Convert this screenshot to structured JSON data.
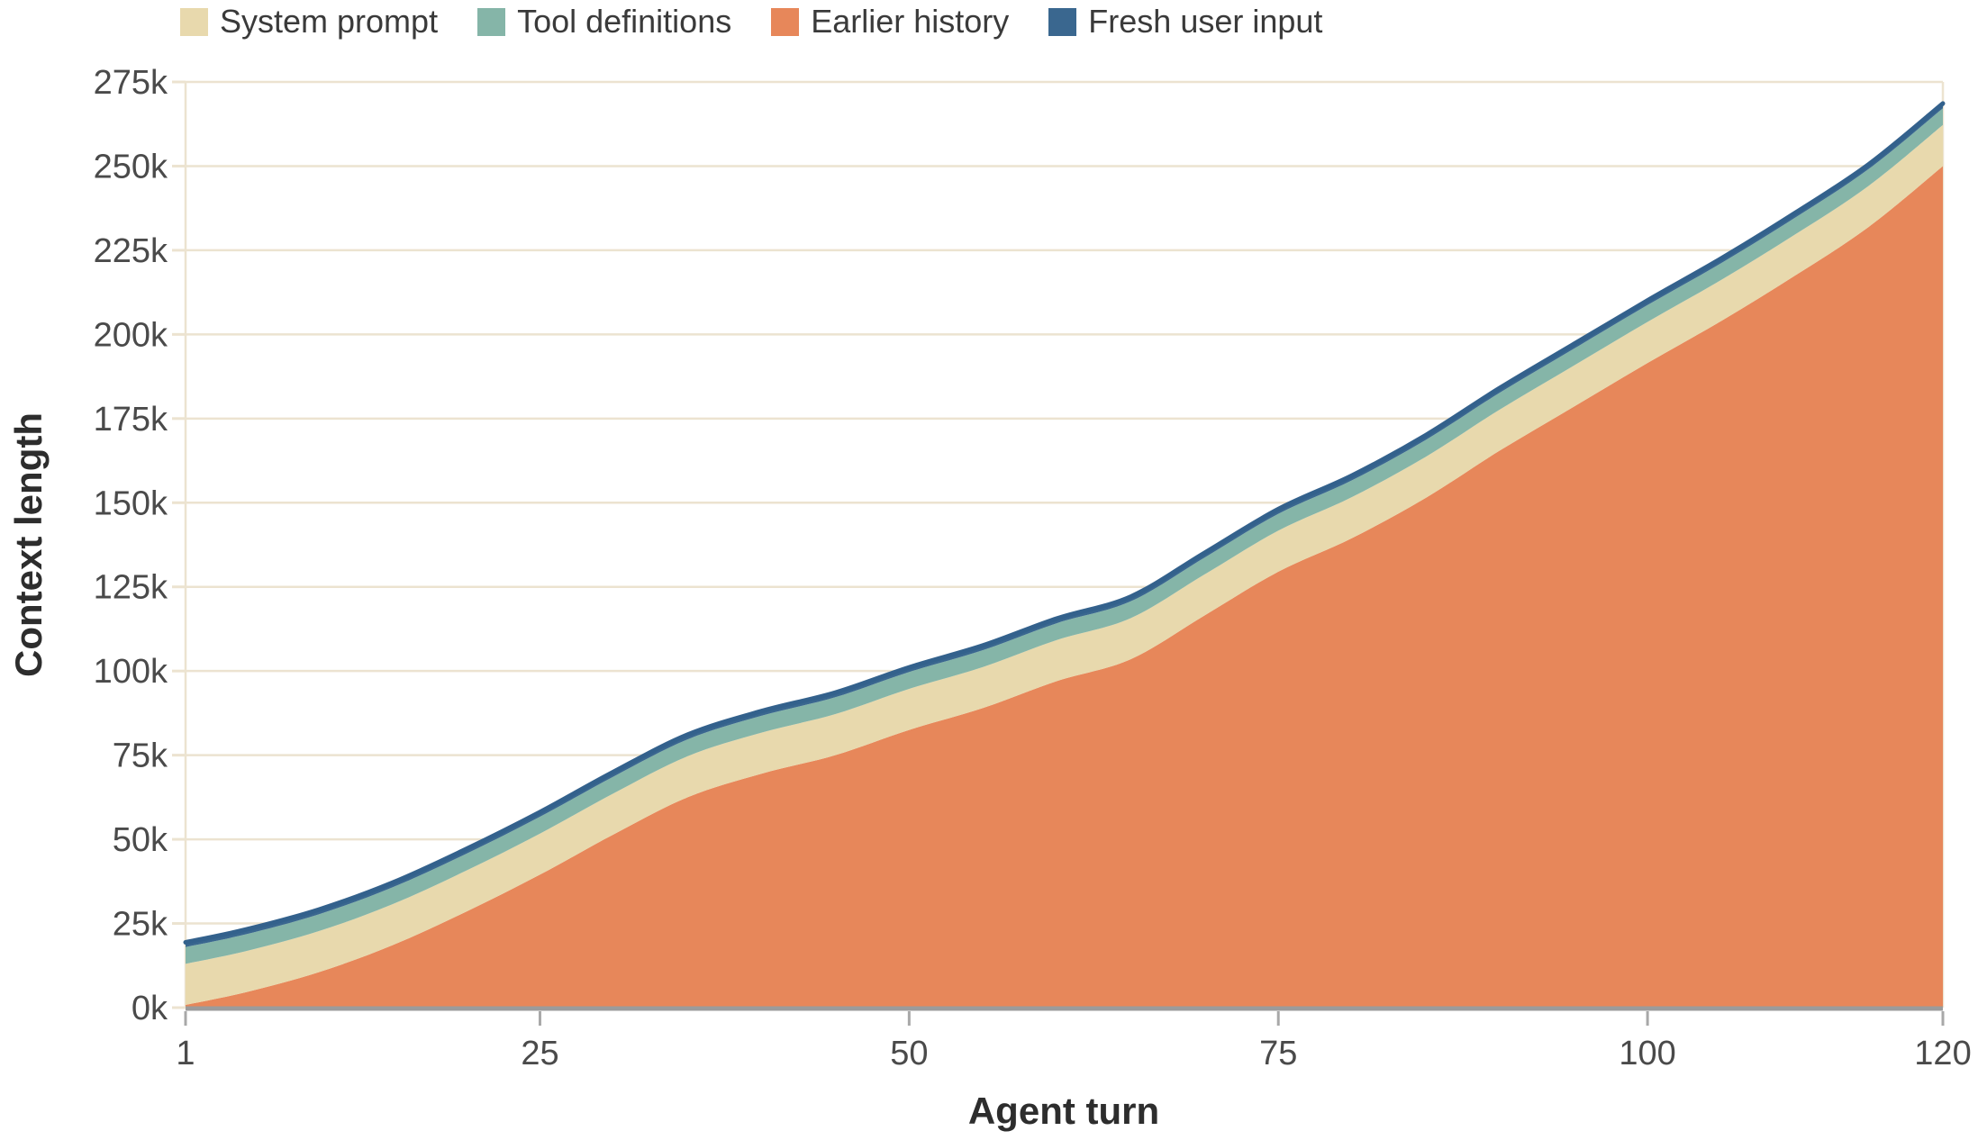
{
  "legend": {
    "items": [
      {
        "label": "System prompt",
        "color": "#e8d9ad"
      },
      {
        "label": "Tool definitions",
        "color": "#85b5a8"
      },
      {
        "label": "Earlier history",
        "color": "#e7875a"
      },
      {
        "label": "Fresh user input",
        "color": "#3a678f"
      }
    ]
  },
  "chart_data": {
    "type": "area",
    "stacked": true,
    "title": "",
    "xlabel": "Agent turn",
    "ylabel": "Context length",
    "xlim": [
      1,
      120
    ],
    "ylim_k": [
      0,
      275
    ],
    "x_ticks": [
      1,
      25,
      50,
      75,
      100,
      120
    ],
    "y_ticks_k": [
      0,
      25,
      50,
      75,
      100,
      125,
      150,
      175,
      200,
      225,
      250,
      275
    ],
    "y_tick_labels": [
      "0k",
      "25k",
      "50k",
      "75k",
      "100k",
      "125k",
      "150k",
      "175k",
      "200k",
      "225k",
      "250k",
      "275k"
    ],
    "x_turns": [
      1,
      5,
      10,
      15,
      20,
      25,
      30,
      35,
      40,
      45,
      50,
      55,
      60,
      65,
      70,
      75,
      80,
      85,
      90,
      95,
      100,
      105,
      110,
      115,
      120
    ],
    "series": [
      {
        "name": "Earlier history",
        "color": "#e7875a",
        "values_k": [
          0.8,
          4.5,
          10.5,
          18.5,
          28.5,
          39.5,
          51.5,
          62.5,
          69.5,
          75,
          82.5,
          89,
          97,
          103.5,
          116.5,
          129.5,
          139.5,
          151.5,
          165.5,
          178.5,
          191.5,
          204,
          217.5,
          232,
          250
        ]
      },
      {
        "name": "System prompt",
        "color": "#e8d9ad",
        "values_k": [
          12.2,
          12.2,
          12.2,
          12.2,
          12.2,
          12.2,
          12.2,
          12.2,
          12.2,
          12.2,
          12.2,
          12.2,
          12.2,
          12.2,
          12.2,
          12.2,
          12.2,
          12.2,
          12.2,
          12.2,
          12.2,
          12.2,
          12.2,
          12.2,
          12.2
        ]
      },
      {
        "name": "Tool definitions",
        "color": "#85b5a8",
        "values_k": [
          5,
          5,
          5,
          5,
          5,
          5,
          5,
          5,
          5,
          5,
          5,
          5,
          5,
          5,
          5,
          5,
          5,
          5,
          5,
          5,
          5,
          5,
          5,
          5,
          5
        ]
      },
      {
        "name": "Fresh user input",
        "color": "#3a678f",
        "values_k": [
          1.4,
          1.4,
          1.4,
          1.4,
          1.4,
          1.4,
          1.4,
          1.4,
          1.4,
          1.4,
          1.4,
          1.4,
          1.4,
          1.4,
          1.4,
          1.4,
          1.4,
          1.4,
          1.4,
          1.4,
          1.4,
          1.4,
          1.4,
          1.4,
          1.4
        ]
      }
    ],
    "legend_order": [
      "System prompt",
      "Tool definitions",
      "Earlier history",
      "Fresh user input"
    ]
  },
  "styles": {
    "background": "#ffffff",
    "gridline_color": "#ece3d0",
    "axis_line_color": "#9b9b9b",
    "x_tick_mark_color": "#a8a8a8",
    "tick_text_color": "#4a4a4a",
    "title_text_color": "#2d2d2d",
    "top_line_color": "#33618c"
  }
}
